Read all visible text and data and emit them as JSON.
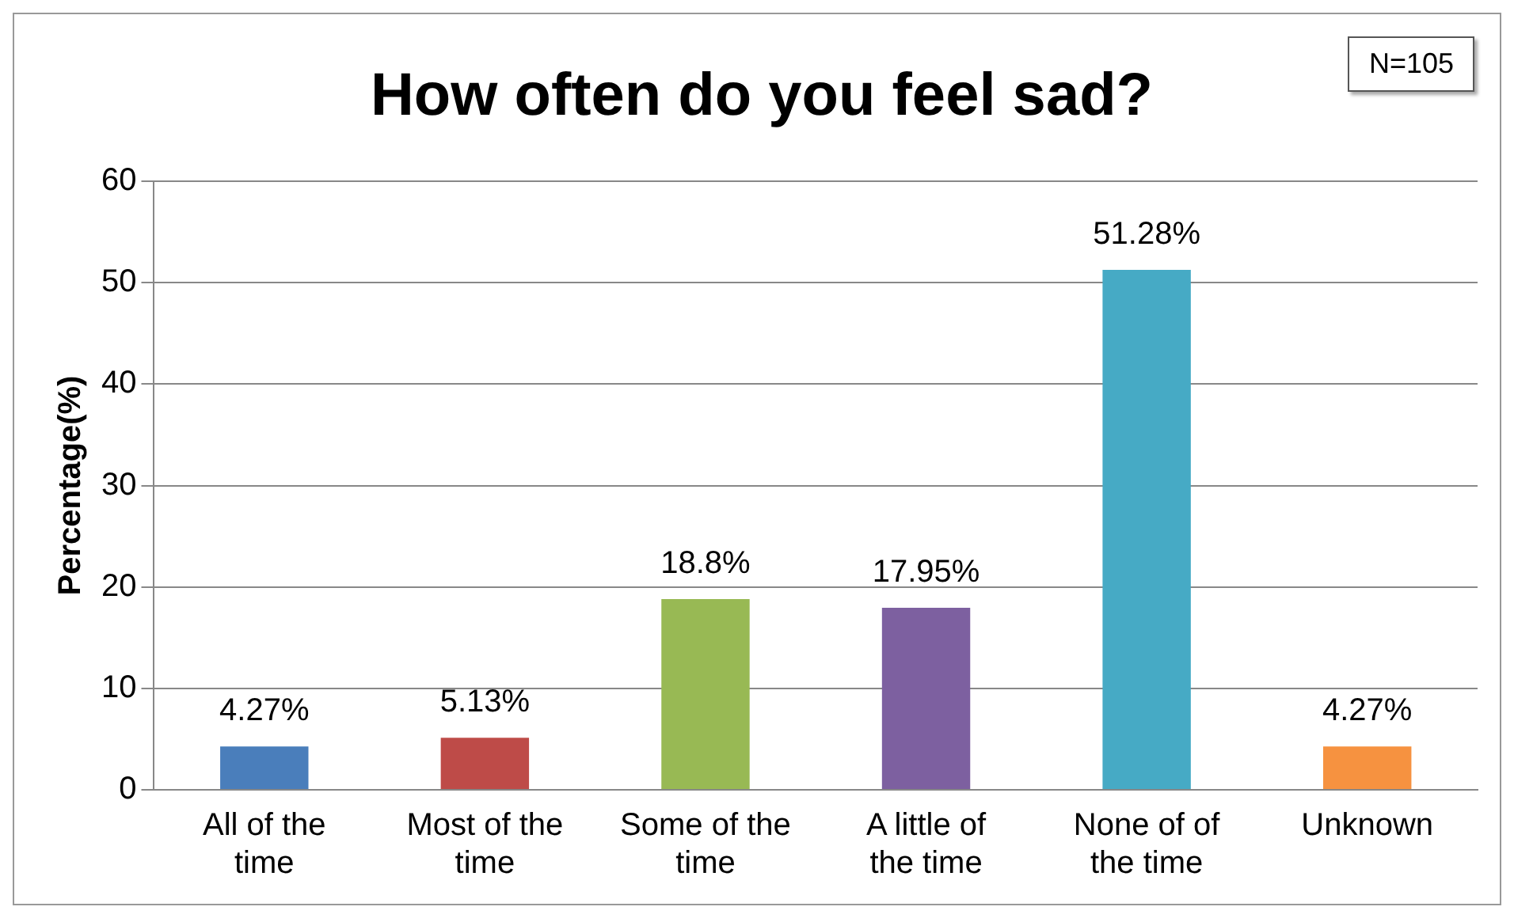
{
  "chart_data": {
    "type": "bar",
    "title": "How often do you feel sad?",
    "ylabel": "Percentage(%)",
    "categories": [
      "All of the time",
      "Most of the time",
      "Some of the time",
      "A little of the time",
      "None of of the time",
      "Unknown"
    ],
    "values": [
      4.27,
      5.13,
      18.8,
      17.95,
      51.28,
      4.27
    ],
    "value_labels": [
      "4.27%",
      "5.13%",
      "18.8%",
      "17.95%",
      "51.28%",
      "4.27%"
    ],
    "colors": [
      "#4a7ebb",
      "#be4b48",
      "#98b954",
      "#7d60a0",
      "#46aac5",
      "#f69240"
    ],
    "ylim": [
      0,
      60
    ],
    "yticks": [
      0,
      10,
      20,
      30,
      40,
      50,
      60
    ],
    "grid": "y",
    "legend": false,
    "annotations": [
      "N=105"
    ]
  }
}
